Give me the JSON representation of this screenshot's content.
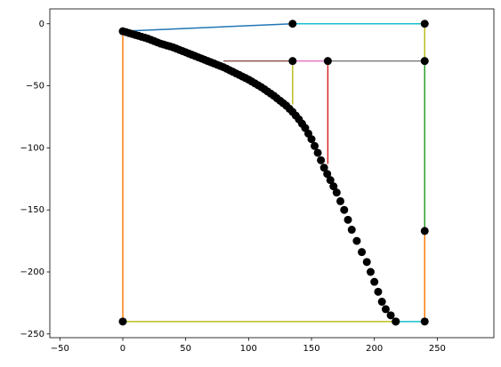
{
  "chart_data": {
    "type": "line",
    "xlim": [
      -58,
      295
    ],
    "ylim": [
      -253,
      12
    ],
    "xticks": [
      {
        "value": -50,
        "label": "−50"
      },
      0,
      50,
      100,
      150,
      200,
      250
    ],
    "yticks": [
      0,
      {
        "value": -50,
        "label": "−50"
      },
      {
        "value": -100,
        "label": "−100"
      },
      {
        "value": -150,
        "label": "−150"
      },
      {
        "value": -200,
        "label": "−200"
      },
      {
        "value": -250,
        "label": "−250"
      }
    ],
    "series": [
      {
        "color": "#1f77b4",
        "x": [
          0,
          135
        ],
        "y": [
          -6,
          0
        ]
      },
      {
        "color": "#ff7f0e",
        "x": [
          0,
          0
        ],
        "y": [
          -6,
          -240
        ]
      },
      {
        "color": "#2ca02c",
        "x": [
          240,
          240
        ],
        "y": [
          -30,
          -167
        ]
      },
      {
        "color": "#d62728",
        "x": [
          163,
          163
        ],
        "y": [
          -30,
          -113
        ]
      },
      {
        "color": "#8c564b",
        "x": [
          80,
          135
        ],
        "y": [
          -30,
          -30
        ]
      },
      {
        "color": "#e377c2",
        "x": [
          135,
          163
        ],
        "y": [
          -30,
          -30
        ]
      },
      {
        "color": "#7f7f7f",
        "x": [
          163,
          240
        ],
        "y": [
          -30,
          -30
        ]
      },
      {
        "color": "#bcbd22",
        "x": [
          135,
          135
        ],
        "y": [
          -30,
          -65
        ]
      },
      {
        "color": "#bcbd22",
        "x": [
          0,
          217
        ],
        "y": [
          -240,
          -240
        ]
      },
      {
        "color": "#bcbd22",
        "x": [
          240,
          240
        ],
        "y": [
          0,
          -30
        ]
      },
      {
        "color": "#17becf",
        "x": [
          135,
          240
        ],
        "y": [
          0,
          0
        ]
      },
      {
        "color": "#17becf",
        "x": [
          217,
          240
        ],
        "y": [
          -240,
          -240
        ]
      },
      {
        "color": "#ff7f0e",
        "x": [
          240,
          240
        ],
        "y": [
          -167,
          -240
        ]
      },
      {
        "color": "#000000",
        "marker": true,
        "x": [
          135,
          240,
          135,
          163,
          240,
          240,
          0,
          240,
          217
        ],
        "y": [
          0,
          0,
          -30,
          -30,
          -30,
          -167,
          -240,
          -240,
          -240
        ]
      },
      {
        "color": "#000000",
        "marker": true,
        "x": [
          0,
          2.5,
          5,
          7.5,
          10,
          12.5,
          15,
          17.5,
          20,
          22.5,
          25,
          27.5,
          30,
          32.5,
          35,
          37.5,
          40,
          42.5,
          45,
          47.5,
          50,
          52.5,
          55,
          57.5,
          60,
          62.5,
          65,
          67.5,
          70,
          72.5,
          75,
          77.5,
          80,
          82.5,
          85,
          87.5,
          90,
          92.5,
          95,
          97.5,
          100,
          102.5,
          105,
          107.5,
          110,
          112.5,
          115,
          117.5,
          120,
          122.5,
          125,
          127.5,
          130,
          132.5,
          135,
          137.5,
          140,
          142.5,
          145,
          147.5,
          150,
          152.5,
          155,
          157.5,
          160,
          162.5,
          165,
          167.5,
          170,
          173,
          176,
          179,
          182,
          186,
          190,
          194,
          197,
          200,
          203,
          206,
          209,
          213,
          217
        ],
        "y": [
          -6,
          -6.7,
          -7.5,
          -8.2,
          -9,
          -9.7,
          -10.5,
          -11.2,
          -12,
          -13,
          -14,
          -15,
          -16,
          -16.7,
          -17.5,
          -18.2,
          -19,
          -20,
          -21,
          -22,
          -23,
          -24,
          -25,
          -26,
          -27,
          -28,
          -29,
          -30,
          -31,
          -32,
          -33,
          -34,
          -35,
          -36.2,
          -37.5,
          -38.7,
          -40,
          -41.2,
          -42.5,
          -43.7,
          -45,
          -46.5,
          -48,
          -49.5,
          -51,
          -52.7,
          -54.5,
          -56.2,
          -58,
          -60,
          -62,
          -64,
          -66,
          -68.5,
          -71,
          -74,
          -77,
          -80.5,
          -84,
          -88.5,
          -93,
          -98.5,
          -104,
          -110,
          -116,
          -121,
          -126,
          -131,
          -136,
          -143,
          -150,
          -158,
          -166,
          -175,
          -184,
          -192,
          -200,
          -208,
          -216,
          -224,
          -230,
          -235,
          -240
        ]
      }
    ]
  }
}
